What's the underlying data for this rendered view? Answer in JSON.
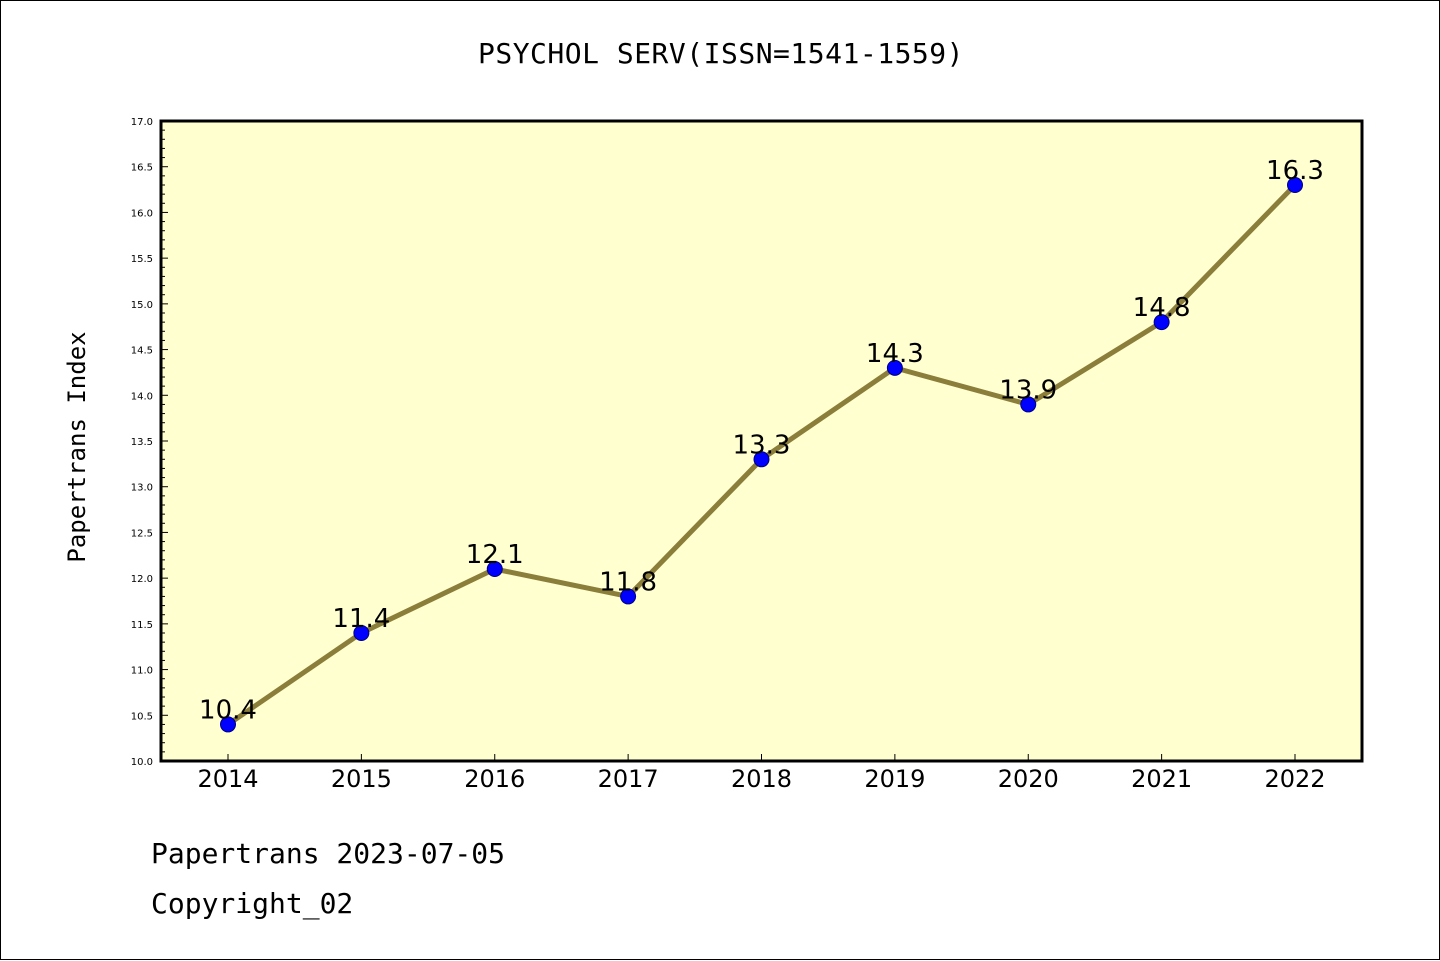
{
  "chart_data": {
    "type": "line",
    "title": "PSYCHOL SERV(ISSN=1541-1559)",
    "xlabel": "",
    "ylabel": "Papertrans Index",
    "categories": [
      "2014",
      "2015",
      "2016",
      "2017",
      "2018",
      "2019",
      "2020",
      "2021",
      "2022"
    ],
    "series": [
      {
        "values": [
          10.4,
          11.4,
          12.1,
          11.8,
          13.3,
          14.3,
          13.9,
          14.8,
          16.3
        ],
        "labels": [
          "10.4",
          "11.4",
          "12.1",
          "11.8",
          "13.3",
          "14.3",
          "13.9",
          "14.8",
          "16.3"
        ],
        "line_color": "#8b7d3a",
        "marker_color": "#0000ff"
      }
    ],
    "ylim": [
      10.0,
      17.0
    ],
    "yticks": [
      "10.0",
      "10.5",
      "11.0",
      "11.5",
      "12.0",
      "12.5",
      "13.0",
      "13.5",
      "14.0",
      "14.5",
      "15.0",
      "15.5",
      "16.0",
      "16.5",
      "17.0"
    ],
    "plot_background": "#ffffd0",
    "grid": false,
    "legend": "none"
  },
  "footer": {
    "line1": "Papertrans 2023-07-05",
    "line2": "Copyright_02"
  }
}
